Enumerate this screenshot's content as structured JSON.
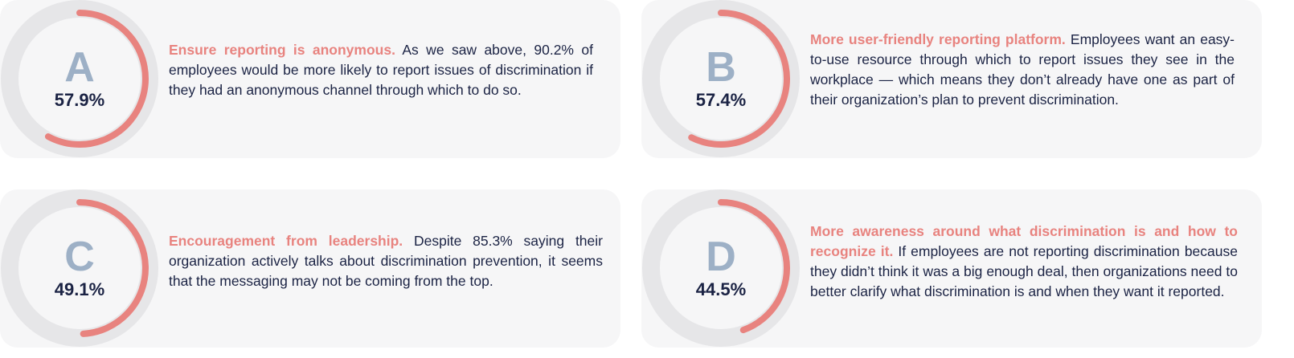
{
  "colors": {
    "accent": "#e8837f",
    "letter": "#9db0c6",
    "text": "#1b2344",
    "track": "#e6e6e8",
    "card": "#f6f6f7"
  },
  "items": [
    {
      "letter": "A",
      "percent_label": "57.9%",
      "value": 57.9,
      "heading": "Ensure reporting is anonymous.",
      "body": " As we saw above, 90.2% of employees would be more likely to report issues of discrimination if they had an anonymous channel through which to do so."
    },
    {
      "letter": "B",
      "percent_label": "57.4%",
      "value": 57.4,
      "heading": "More user-friendly reporting platform.",
      "body": " Employees want an easy-to-use resource through which to report issues they see in the workplace — which means they don’t already have one as part of their organization’s plan to prevent discrimination."
    },
    {
      "letter": "C",
      "percent_label": "49.1%",
      "value": 49.1,
      "heading": "Encouragement from leadership.",
      "body": " Despite 85.3% saying their organization actively talks about discrimination prevention, it seems that the messaging may not be coming from the top."
    },
    {
      "letter": "D",
      "percent_label": "44.5%",
      "value": 44.5,
      "heading": "More awareness around what discrimination is and how to recognize it.",
      "body": " If employees are not reporting discrimination because they didn’t think it was a big enough deal, then organizations need to better clarify what discrimination is and when they want it reported."
    }
  ]
}
